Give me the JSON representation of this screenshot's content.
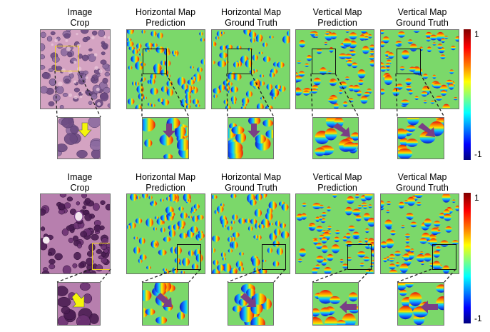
{
  "rows": [
    {
      "columns": [
        {
          "title_line1": "Image",
          "title_line2": "Crop"
        },
        {
          "title_line1": "Horizontal Map",
          "title_line2": "Prediction"
        },
        {
          "title_line1": "Horizontal Map",
          "title_line2": "Ground Truth"
        },
        {
          "title_line1": "Vertical Map",
          "title_line2": "Prediction"
        },
        {
          "title_line1": "Vertical Map",
          "title_line2": "Ground Truth"
        }
      ],
      "colorbar": {
        "max_label": "1",
        "min_label": "-1"
      }
    },
    {
      "columns": [
        {
          "title_line1": "Image",
          "title_line2": "Crop"
        },
        {
          "title_line1": "Horizontal Map",
          "title_line2": "Prediction"
        },
        {
          "title_line1": "Horizontal Map",
          "title_line2": "Ground Truth"
        },
        {
          "title_line1": "Vertical Map",
          "title_line2": "Prediction"
        },
        {
          "title_line1": "Vertical Map",
          "title_line2": "Ground Truth"
        }
      ],
      "colorbar": {
        "max_label": "1",
        "min_label": "-1"
      }
    }
  ],
  "colors": {
    "background_map": "#7bd86a",
    "tissue": "#c98fb3",
    "roi_image": "#f2d21b",
    "roi_map": "#111111",
    "arrow_image": "#f5f50a",
    "arrow_map": "#7a3f86"
  }
}
